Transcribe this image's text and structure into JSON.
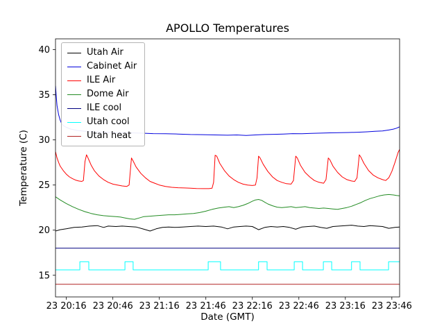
{
  "figure": {
    "title": "APOLLO Temperatures",
    "xlabel": "Date (GMT)",
    "ylabel": "Temperature (C)"
  },
  "chart_data": {
    "type": "line",
    "title": "APOLLO Temperatures",
    "xlabel": "Date (GMT)",
    "ylabel": "Temperature (C)",
    "x_unit": "minutes relative to first tick (23 20:16 GMT)",
    "xlim": [
      -7,
      215
    ],
    "ylim": [
      12.6,
      41.2
    ],
    "yticks": [
      15,
      20,
      25,
      30,
      35,
      40
    ],
    "xtick_pos": [
      0,
      30,
      60,
      90,
      120,
      150,
      180,
      210
    ],
    "xtick_labels": [
      "23 20:16",
      "23 20:46",
      "23 21:16",
      "23 21:46",
      "23 22:16",
      "23 22:46",
      "23 23:16",
      "23 23:46"
    ],
    "grid": false,
    "legend_position": "upper left",
    "series": [
      {
        "name": "Utah Air",
        "color": "#000000",
        "points": [
          [
            -7,
            19.9
          ],
          [
            -4,
            20.05
          ],
          [
            0,
            20.15
          ],
          [
            5,
            20.3
          ],
          [
            10,
            20.35
          ],
          [
            15,
            20.45
          ],
          [
            20,
            20.5
          ],
          [
            24,
            20.3
          ],
          [
            27,
            20.45
          ],
          [
            32,
            20.4
          ],
          [
            36,
            20.45
          ],
          [
            40,
            20.4
          ],
          [
            45,
            20.35
          ],
          [
            50,
            20.1
          ],
          [
            54,
            19.9
          ],
          [
            58,
            20.15
          ],
          [
            62,
            20.3
          ],
          [
            66,
            20.35
          ],
          [
            70,
            20.3
          ],
          [
            75,
            20.35
          ],
          [
            80,
            20.4
          ],
          [
            85,
            20.45
          ],
          [
            90,
            20.4
          ],
          [
            95,
            20.45
          ],
          [
            100,
            20.35
          ],
          [
            104,
            20.15
          ],
          [
            108,
            20.35
          ],
          [
            112,
            20.4
          ],
          [
            116,
            20.45
          ],
          [
            120,
            20.4
          ],
          [
            124,
            20.05
          ],
          [
            128,
            20.3
          ],
          [
            132,
            20.4
          ],
          [
            136,
            20.35
          ],
          [
            140,
            20.4
          ],
          [
            144,
            20.3
          ],
          [
            148,
            20.1
          ],
          [
            152,
            20.35
          ],
          [
            156,
            20.4
          ],
          [
            160,
            20.45
          ],
          [
            164,
            20.3
          ],
          [
            168,
            20.2
          ],
          [
            172,
            20.4
          ],
          [
            176,
            20.45
          ],
          [
            180,
            20.5
          ],
          [
            184,
            20.55
          ],
          [
            188,
            20.45
          ],
          [
            192,
            20.4
          ],
          [
            196,
            20.5
          ],
          [
            200,
            20.45
          ],
          [
            204,
            20.4
          ],
          [
            208,
            20.2
          ],
          [
            212,
            20.3
          ],
          [
            215,
            20.35
          ]
        ]
      },
      {
        "name": "Cabinet Air",
        "color": "#0000dd",
        "points": [
          [
            -7,
            36.0
          ],
          [
            -6.5,
            34.8
          ],
          [
            -6,
            33.8
          ],
          [
            -5,
            32.8
          ],
          [
            -4,
            32.2
          ],
          [
            -3,
            31.8
          ],
          [
            -2,
            31.6
          ],
          [
            0,
            31.4
          ],
          [
            3,
            31.2
          ],
          [
            7,
            31.05
          ],
          [
            12,
            30.95
          ],
          [
            18,
            30.9
          ],
          [
            25,
            30.85
          ],
          [
            32,
            30.8
          ],
          [
            40,
            30.78
          ],
          [
            48,
            30.75
          ],
          [
            56,
            30.7
          ],
          [
            64,
            30.68
          ],
          [
            72,
            30.65
          ],
          [
            80,
            30.6
          ],
          [
            88,
            30.58
          ],
          [
            96,
            30.55
          ],
          [
            104,
            30.52
          ],
          [
            110,
            30.55
          ],
          [
            116,
            30.5
          ],
          [
            122,
            30.55
          ],
          [
            128,
            30.6
          ],
          [
            134,
            30.62
          ],
          [
            140,
            30.65
          ],
          [
            146,
            30.7
          ],
          [
            152,
            30.68
          ],
          [
            158,
            30.72
          ],
          [
            164,
            30.75
          ],
          [
            170,
            30.78
          ],
          [
            176,
            30.8
          ],
          [
            182,
            30.82
          ],
          [
            188,
            30.85
          ],
          [
            194,
            30.9
          ],
          [
            199,
            30.95
          ],
          [
            204,
            31.0
          ],
          [
            208,
            31.1
          ],
          [
            211,
            31.2
          ],
          [
            213,
            31.3
          ],
          [
            215,
            31.45
          ]
        ]
      },
      {
        "name": "ILE Air",
        "color": "#ff0000",
        "points": [
          [
            -7,
            28.7
          ],
          [
            -6,
            28.0
          ],
          [
            -5,
            27.5
          ],
          [
            -4,
            27.1
          ],
          [
            -2,
            26.6
          ],
          [
            0,
            26.2
          ],
          [
            2,
            25.9
          ],
          [
            4,
            25.7
          ],
          [
            6,
            25.55
          ],
          [
            8,
            25.45
          ],
          [
            10,
            25.4
          ],
          [
            11,
            25.5
          ],
          [
            12,
            27.6
          ],
          [
            13,
            28.35
          ],
          [
            14,
            28.0
          ],
          [
            16,
            27.2
          ],
          [
            18,
            26.6
          ],
          [
            21,
            26.0
          ],
          [
            24,
            25.6
          ],
          [
            27,
            25.3
          ],
          [
            30,
            25.1
          ],
          [
            33,
            25.0
          ],
          [
            36,
            24.9
          ],
          [
            39,
            24.85
          ],
          [
            40.5,
            25.0
          ],
          [
            42,
            28.0
          ],
          [
            43,
            27.7
          ],
          [
            45,
            27.0
          ],
          [
            48,
            26.3
          ],
          [
            51,
            25.8
          ],
          [
            54,
            25.4
          ],
          [
            57,
            25.2
          ],
          [
            60,
            25.0
          ],
          [
            64,
            24.85
          ],
          [
            68,
            24.75
          ],
          [
            72,
            24.7
          ],
          [
            76,
            24.68
          ],
          [
            80,
            24.65
          ],
          [
            84,
            24.62
          ],
          [
            88,
            24.6
          ],
          [
            92,
            24.6
          ],
          [
            94,
            24.65
          ],
          [
            95,
            25.3
          ],
          [
            96,
            28.3
          ],
          [
            97,
            28.2
          ],
          [
            99,
            27.4
          ],
          [
            102,
            26.6
          ],
          [
            105,
            26.0
          ],
          [
            108,
            25.6
          ],
          [
            111,
            25.3
          ],
          [
            114,
            25.1
          ],
          [
            117,
            25.0
          ],
          [
            120,
            24.95
          ],
          [
            122,
            25.0
          ],
          [
            123,
            25.8
          ],
          [
            124,
            28.2
          ],
          [
            125,
            28.0
          ],
          [
            127,
            27.3
          ],
          [
            130,
            26.5
          ],
          [
            133,
            25.9
          ],
          [
            136,
            25.5
          ],
          [
            139,
            25.3
          ],
          [
            142,
            25.15
          ],
          [
            145,
            25.1
          ],
          [
            146.5,
            25.5
          ],
          [
            148,
            28.2
          ],
          [
            149,
            28.0
          ],
          [
            151,
            27.2
          ],
          [
            154,
            26.4
          ],
          [
            157,
            25.9
          ],
          [
            160,
            25.5
          ],
          [
            163,
            25.3
          ],
          [
            166,
            25.2
          ],
          [
            167.5,
            25.6
          ],
          [
            169,
            28.0
          ],
          [
            170,
            27.8
          ],
          [
            172,
            27.1
          ],
          [
            175,
            26.4
          ],
          [
            178,
            25.9
          ],
          [
            181,
            25.6
          ],
          [
            184,
            25.45
          ],
          [
            186,
            25.4
          ],
          [
            187.5,
            25.8
          ],
          [
            189,
            28.35
          ],
          [
            190,
            28.1
          ],
          [
            192,
            27.4
          ],
          [
            195,
            26.6
          ],
          [
            198,
            26.1
          ],
          [
            201,
            25.8
          ],
          [
            204,
            25.6
          ],
          [
            206,
            25.5
          ],
          [
            208,
            25.8
          ],
          [
            210,
            26.5
          ],
          [
            212,
            27.5
          ],
          [
            214,
            28.6
          ],
          [
            215,
            28.95
          ]
        ]
      },
      {
        "name": "Dome Air",
        "color": "#228b22",
        "points": [
          [
            -7,
            23.7
          ],
          [
            -4,
            23.35
          ],
          [
            0,
            22.95
          ],
          [
            4,
            22.6
          ],
          [
            8,
            22.3
          ],
          [
            12,
            22.05
          ],
          [
            16,
            21.85
          ],
          [
            20,
            21.7
          ],
          [
            24,
            21.6
          ],
          [
            28,
            21.55
          ],
          [
            32,
            21.5
          ],
          [
            35,
            21.45
          ],
          [
            38,
            21.35
          ],
          [
            41,
            21.25
          ],
          [
            44,
            21.2
          ],
          [
            47,
            21.35
          ],
          [
            50,
            21.5
          ],
          [
            54,
            21.55
          ],
          [
            58,
            21.6
          ],
          [
            62,
            21.65
          ],
          [
            66,
            21.7
          ],
          [
            70,
            21.7
          ],
          [
            74,
            21.75
          ],
          [
            78,
            21.8
          ],
          [
            82,
            21.85
          ],
          [
            86,
            21.95
          ],
          [
            90,
            22.1
          ],
          [
            94,
            22.3
          ],
          [
            98,
            22.45
          ],
          [
            102,
            22.55
          ],
          [
            105,
            22.6
          ],
          [
            108,
            22.5
          ],
          [
            111,
            22.6
          ],
          [
            114,
            22.75
          ],
          [
            117,
            22.95
          ],
          [
            120,
            23.2
          ],
          [
            122,
            23.35
          ],
          [
            124,
            23.4
          ],
          [
            126,
            23.3
          ],
          [
            128,
            23.1
          ],
          [
            130,
            22.9
          ],
          [
            133,
            22.7
          ],
          [
            136,
            22.55
          ],
          [
            139,
            22.5
          ],
          [
            142,
            22.55
          ],
          [
            145,
            22.6
          ],
          [
            148,
            22.5
          ],
          [
            151,
            22.55
          ],
          [
            154,
            22.6
          ],
          [
            157,
            22.5
          ],
          [
            160,
            22.45
          ],
          [
            163,
            22.4
          ],
          [
            166,
            22.45
          ],
          [
            169,
            22.4
          ],
          [
            172,
            22.35
          ],
          [
            175,
            22.3
          ],
          [
            178,
            22.4
          ],
          [
            181,
            22.5
          ],
          [
            184,
            22.65
          ],
          [
            187,
            22.85
          ],
          [
            190,
            23.05
          ],
          [
            193,
            23.3
          ],
          [
            196,
            23.5
          ],
          [
            199,
            23.65
          ],
          [
            202,
            23.8
          ],
          [
            205,
            23.9
          ],
          [
            208,
            23.95
          ],
          [
            211,
            23.9
          ],
          [
            213,
            23.85
          ],
          [
            215,
            23.8
          ]
        ]
      },
      {
        "name": "ILE cool",
        "color": "#000080",
        "points": [
          [
            -7,
            18.0
          ],
          [
            215,
            18.0
          ]
        ]
      },
      {
        "name": "Utah cool",
        "color": "#00ffff",
        "points": [
          [
            -7,
            15.6
          ],
          [
            8.7,
            15.6
          ],
          [
            8.7,
            16.5
          ],
          [
            14.5,
            16.5
          ],
          [
            14.5,
            15.6
          ],
          [
            37.8,
            15.6
          ],
          [
            37.8,
            16.5
          ],
          [
            43.1,
            16.5
          ],
          [
            43.1,
            15.6
          ],
          [
            91.5,
            15.6
          ],
          [
            91.5,
            16.5
          ],
          [
            99.5,
            16.5
          ],
          [
            99.5,
            15.6
          ],
          [
            124,
            15.6
          ],
          [
            124,
            16.5
          ],
          [
            129.5,
            16.5
          ],
          [
            129.5,
            15.6
          ],
          [
            147,
            15.6
          ],
          [
            147,
            16.5
          ],
          [
            152.4,
            16.5
          ],
          [
            152.4,
            15.6
          ],
          [
            165.8,
            15.6
          ],
          [
            165.8,
            16.5
          ],
          [
            171.2,
            16.5
          ],
          [
            171.2,
            15.6
          ],
          [
            184,
            15.6
          ],
          [
            184,
            16.5
          ],
          [
            189.5,
            16.5
          ],
          [
            189.5,
            15.6
          ],
          [
            207.9,
            15.6
          ],
          [
            207.9,
            16.5
          ],
          [
            215,
            16.5
          ]
        ]
      },
      {
        "name": "Utah heat",
        "color": "#b22222",
        "points": [
          [
            -7,
            14.0
          ],
          [
            215,
            14.0
          ]
        ]
      }
    ]
  }
}
